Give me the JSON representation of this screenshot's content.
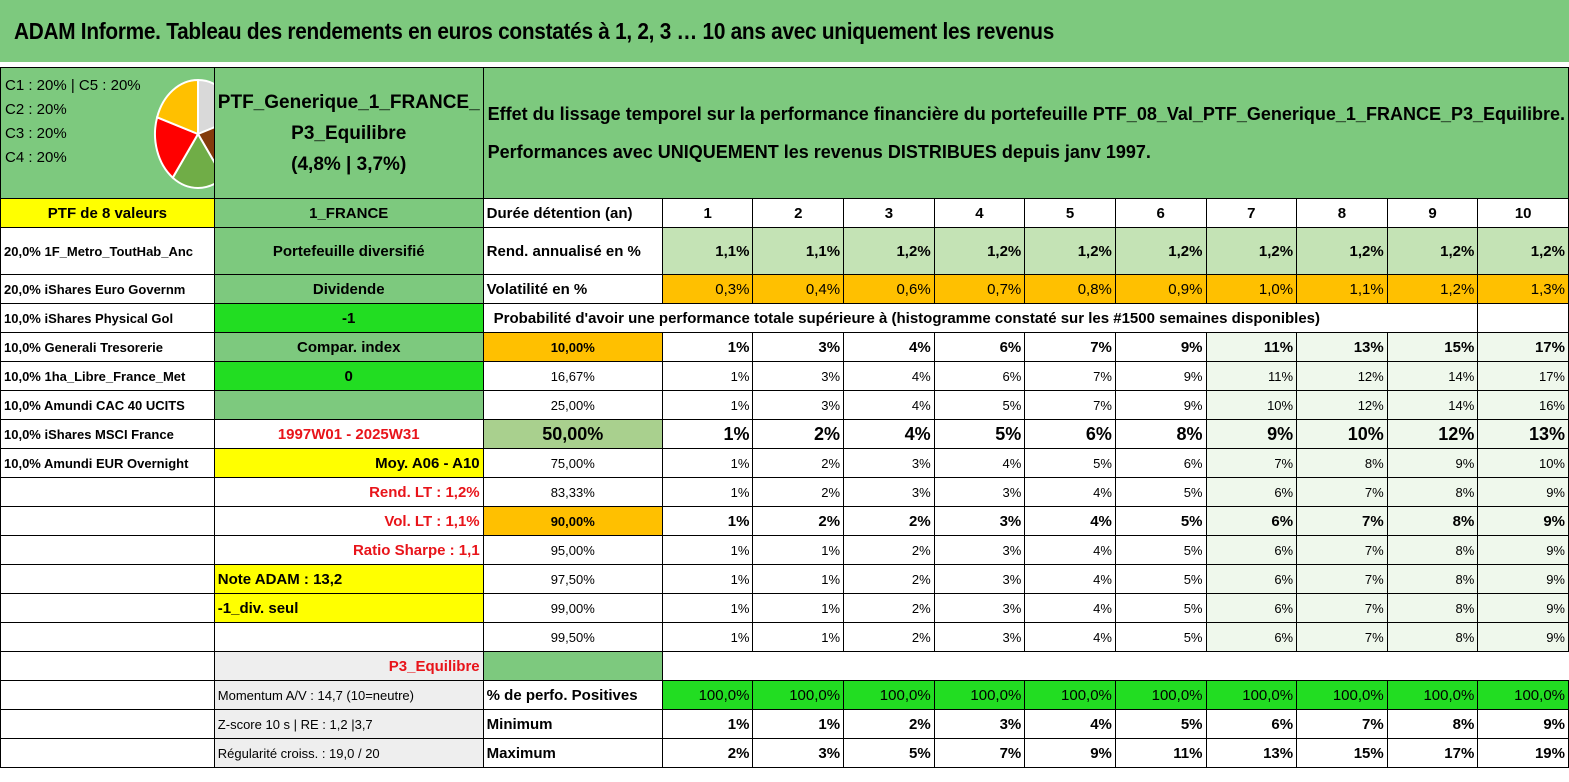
{
  "title": "ADAM Informe. Tableau des rendements en euros constatés à 1, 2, 3 … 10 ans avec uniquement les revenus",
  "legend": {
    "lines": [
      "C1 : 20% | C5 : 20%",
      "C2 : 20%",
      "C3 : 20%",
      "C4 : 20%"
    ],
    "pie_slices": [
      {
        "label": "C1",
        "percent": 20,
        "color": "#d9d9d9"
      },
      {
        "label": "C2",
        "percent": 20,
        "color": "#843c0c"
      },
      {
        "label": "C3",
        "percent": 20,
        "color": "#70ad47"
      },
      {
        "label": "C4",
        "percent": 20,
        "color": "#ff0000"
      },
      {
        "label": "C5",
        "percent": 20,
        "color": "#ffc000"
      }
    ]
  },
  "portfolio": {
    "name_line1": "PTF_Generique_1_FRANCE_",
    "name_line2": "P3_Equilibre",
    "name_line3": "(4,8% | 3,7%)",
    "count_label": "PTF de 8 valeurs",
    "region": "1_FRANCE",
    "type": "Portefeuille diversifié",
    "dividend_label": "Dividende",
    "value_minus1": "-1",
    "compar_label": "Compar. index",
    "value_zero": "0",
    "period": "1997W01 - 2025W31",
    "moy": "Moy. A06 - A10",
    "rend_lt": "Rend. LT : 1,2%",
    "vol_lt": "Vol. LT : 1,1%",
    "sharpe": "Ratio Sharpe : 1,1",
    "note_adam": "Note ADAM : 13,2",
    "div_seul": "-1_div. seul",
    "profile": "P3_Equilibre",
    "momentum": "Momentum A/V : 14,7 (10=neutre)",
    "zscore": "Z-score 10 s | RE : 1,2 |3,7",
    "regularite": "Régularité croiss. : 19,0 / 20"
  },
  "holdings": [
    "20,0% 1F_Metro_ToutHab_Anc",
    "20,0% iShares Euro Governm",
    "10,0% iShares Physical Gol",
    "10,0% Generali Tresorerie",
    "10,0% 1ha_Libre_France_Met",
    "10,0% Amundi CAC 40 UCITS",
    "10,0% iShares MSCI France",
    "10,0% Amundi EUR Overnight"
  ],
  "description": {
    "line1": "Effet du lissage temporel sur la performance financière du portefeuille PTF_08_Val_PTF_Generique_1_FRANCE_P3_Equilibre.",
    "line2": "Performances avec UNIQUEMENT les revenus DISTRIBUES depuis janv 1997."
  },
  "table": {
    "duration_label": "Durée détention (an)",
    "durations": [
      "1",
      "2",
      "3",
      "4",
      "5",
      "6",
      "7",
      "8",
      "9",
      "10"
    ],
    "rend_label": "Rend. annualisé en %",
    "rend": [
      "1,1%",
      "1,1%",
      "1,2%",
      "1,2%",
      "1,2%",
      "1,2%",
      "1,2%",
      "1,2%",
      "1,2%",
      "1,2%"
    ],
    "vol_label": "Volatilité en %",
    "vol": [
      "0,3%",
      "0,4%",
      "0,6%",
      "0,7%",
      "0,8%",
      "0,9%",
      "1,0%",
      "1,1%",
      "1,2%",
      "1,3%"
    ],
    "prob_header": "Probabilité d'avoir une performance totale supérieure à (histogramme constaté sur les #1500 semaines disponibles)",
    "prob_rows": [
      {
        "label": "10,00%",
        "values": [
          "1%",
          "3%",
          "4%",
          "6%",
          "7%",
          "9%",
          "11%",
          "13%",
          "15%",
          "17%"
        ]
      },
      {
        "label": "16,67%",
        "values": [
          "1%",
          "3%",
          "4%",
          "6%",
          "7%",
          "9%",
          "11%",
          "12%",
          "14%",
          "17%"
        ]
      },
      {
        "label": "25,00%",
        "values": [
          "1%",
          "3%",
          "4%",
          "5%",
          "7%",
          "9%",
          "10%",
          "12%",
          "14%",
          "16%"
        ]
      },
      {
        "label": "50,00%",
        "values": [
          "1%",
          "2%",
          "4%",
          "5%",
          "6%",
          "8%",
          "9%",
          "10%",
          "12%",
          "13%"
        ]
      },
      {
        "label": "75,00%",
        "values": [
          "1%",
          "2%",
          "3%",
          "4%",
          "5%",
          "6%",
          "7%",
          "8%",
          "9%",
          "10%"
        ]
      },
      {
        "label": "83,33%",
        "values": [
          "1%",
          "2%",
          "3%",
          "3%",
          "4%",
          "5%",
          "6%",
          "7%",
          "8%",
          "9%"
        ]
      },
      {
        "label": "90,00%",
        "values": [
          "1%",
          "2%",
          "2%",
          "3%",
          "4%",
          "5%",
          "6%",
          "7%",
          "8%",
          "9%"
        ]
      },
      {
        "label": "95,00%",
        "values": [
          "1%",
          "1%",
          "2%",
          "3%",
          "4%",
          "5%",
          "6%",
          "7%",
          "8%",
          "9%"
        ]
      },
      {
        "label": "97,50%",
        "values": [
          "1%",
          "1%",
          "2%",
          "3%",
          "4%",
          "5%",
          "6%",
          "7%",
          "8%",
          "9%"
        ]
      },
      {
        "label": "99,00%",
        "values": [
          "1%",
          "1%",
          "2%",
          "3%",
          "4%",
          "5%",
          "6%",
          "7%",
          "8%",
          "9%"
        ]
      },
      {
        "label": "99,50%",
        "values": [
          "1%",
          "1%",
          "2%",
          "3%",
          "4%",
          "5%",
          "6%",
          "7%",
          "8%",
          "9%"
        ]
      }
    ],
    "pos_label": "% de perfo. Positives",
    "pos": [
      "100,0%",
      "100,0%",
      "100,0%",
      "100,0%",
      "100,0%",
      "100,0%",
      "100,0%",
      "100,0%",
      "100,0%",
      "100,0%"
    ],
    "min_label": "Minimum",
    "min": [
      "1%",
      "1%",
      "2%",
      "3%",
      "4%",
      "5%",
      "6%",
      "7%",
      "8%",
      "9%"
    ],
    "max_label": "Maximum",
    "max": [
      "2%",
      "3%",
      "5%",
      "7%",
      "9%",
      "11%",
      "13%",
      "15%",
      "17%",
      "19%"
    ]
  },
  "colors": {
    "header_green": "#7dc97e",
    "light_green": "#c4e3b5",
    "bright_green": "#22dd22",
    "yellow": "#ffff00",
    "orange": "#ffc000",
    "red_text": "#e8141a"
  }
}
